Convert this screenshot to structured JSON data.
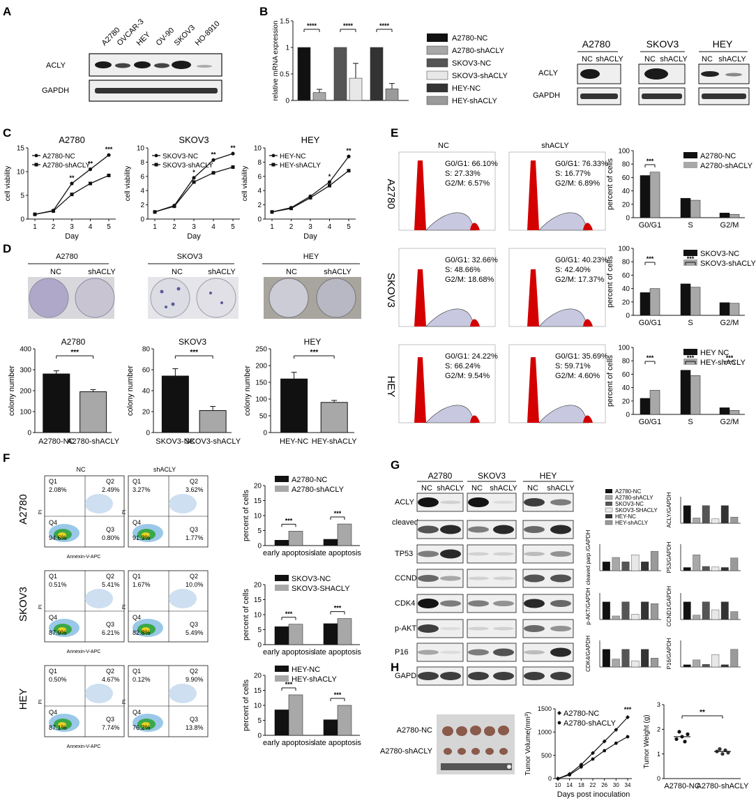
{
  "panels": {
    "A": {
      "letter": "A",
      "cell_lines": [
        "A2780",
        "OVCAR-3",
        "HEY",
        "OV-90",
        "SKOV3",
        "HO-8910"
      ],
      "blots": [
        "ACLY",
        "GAPDH"
      ]
    },
    "B": {
      "letter": "B",
      "chart_ylabel": "relative mRNA expression",
      "legend": [
        "A2780-NC",
        "A2780-shACLY",
        "SKOV3-NC",
        "SKOV3-shACLY",
        "HEY-NC",
        "HEY-shACLY"
      ],
      "colors": [
        "#111111",
        "#a8a8a8",
        "#555555",
        "#e8e8e8",
        "#333333",
        "#9a9a9a"
      ],
      "sig": [
        "****",
        "****",
        "****"
      ],
      "blot_groups": [
        {
          "name": "A2780",
          "lanes": [
            "NC",
            "shACLY"
          ]
        },
        {
          "name": "SKOV3",
          "lanes": [
            "NC",
            "shACLY"
          ]
        },
        {
          "name": "HEY",
          "lanes": [
            "NC",
            "shACLY"
          ]
        }
      ],
      "blots": [
        "ACLY",
        "GAPDH"
      ]
    },
    "C": {
      "letter": "C",
      "ylabel": "cell viability",
      "xlabel": "Day",
      "plots": [
        {
          "title": "A2780",
          "legend": [
            "A2780-NC",
            "A2780-shACLY"
          ],
          "sig": [
            "**",
            "**",
            "***"
          ]
        },
        {
          "title": "SKOV3",
          "legend": [
            "SKOV3-NC",
            "SKOV3-shACLY"
          ],
          "sig": [
            "*",
            "**",
            "**"
          ]
        },
        {
          "title": "HEY",
          "legend": [
            "HEY-NC",
            "HEY-shACLY"
          ],
          "sig": [
            "*",
            "**"
          ]
        }
      ]
    },
    "D": {
      "letter": "D",
      "groups": [
        {
          "title": "A2780",
          "lanes": [
            "NC",
            "shACLY"
          ]
        },
        {
          "title": "SKOV3",
          "lanes": [
            "NC",
            "shACLY"
          ]
        },
        {
          "title": "HEY",
          "lanes": [
            "NC",
            "shACLY"
          ]
        }
      ],
      "ylabel": "colony number",
      "sig": "***",
      "plots": [
        {
          "title": "A2780",
          "categories": [
            "A2780-NC",
            "A2780-shACLY"
          ]
        },
        {
          "title": "SKOV3",
          "categories": [
            "SKOV3-NC",
            "SKOV3-shACLY"
          ]
        },
        {
          "title": "HEY",
          "categories": [
            "HEY-NC",
            "HEY-shACLY"
          ]
        }
      ]
    },
    "E": {
      "letter": "E",
      "col_labels": [
        "NC",
        "shACLY"
      ],
      "rows": [
        {
          "label": "A2780",
          "nc": [
            "G0/G1: 66.10%",
            "S: 27.33%",
            "G2/M: 6.57%"
          ],
          "sh": [
            "G0/G1: 76.33%",
            "S: 16.77%",
            "G2/M: 6.89%"
          ],
          "legend": [
            "A2780-NC",
            "A2780-shACLY"
          ]
        },
        {
          "label": "SKOV3",
          "nc": [
            "G0/G1: 32.66%",
            "S: 48.66%",
            "G2/M: 18.68%"
          ],
          "sh": [
            "G0/G1: 40.23%",
            "S: 42.40%",
            "G2/M: 17.37%"
          ],
          "legend": [
            "SKOV3-NC",
            "SKOV3-shACLY"
          ]
        },
        {
          "label": "HEY",
          "nc": [
            "G0/G1: 24.22%",
            "S: 66.24%",
            "G2/M: 9.54%"
          ],
          "sh": [
            "G0/G1: 35.69%",
            "S: 59.71%",
            "G2/M: 4.60%"
          ],
          "legend": [
            "HEY NC",
            "HEY-shACLY"
          ]
        }
      ],
      "ylabel": "percent of cells",
      "phases": [
        "G0/G1",
        "S",
        "G2/M"
      ],
      "sig": "***"
    },
    "F": {
      "letter": "F",
      "col_labels": [
        "NC",
        "shACLY"
      ],
      "xlabel": "Annexin-V-APC",
      "ylabel_flow": "PI",
      "quadrants": [
        "Q1",
        "Q2",
        "Q3",
        "Q4"
      ],
      "rows": [
        {
          "label": "A2780",
          "nc": [
            "2.08%",
            "2.49%",
            "0.80%",
            "94.6%"
          ],
          "sh": [
            "3.27%",
            "3.62%",
            "1.77%",
            "91.3%"
          ],
          "legend": [
            "A2780-NC",
            "A2780-shACLY"
          ]
        },
        {
          "label": "SKOV3",
          "nc": [
            "0.51%",
            "5.41%",
            "6.21%",
            "87.9%"
          ],
          "sh": [
            "1.67%",
            "10.0%",
            "5.49%",
            "82.8%"
          ],
          "legend": [
            "SKOV3-NC",
            "SKOV3-SHACLY"
          ]
        },
        {
          "label": "HEY",
          "nc": [
            "0.50%",
            "4.67%",
            "7.74%",
            "87.1%"
          ],
          "sh": [
            "0.12%",
            "9.90%",
            "13.8%",
            "76.2%"
          ],
          "legend": [
            "HEY-NC",
            "HEY-shACLY"
          ]
        }
      ],
      "ylabel": "percent of cells",
      "categories": [
        "early apoptosis",
        "late apoptosis"
      ],
      "sig": "***"
    },
    "G": {
      "letter": "G",
      "groups": [
        "A2780",
        "SKOV3",
        "HEY"
      ],
      "lanes": [
        "NC",
        "shACLY"
      ],
      "blots": [
        "ACLY",
        "cleaved parp",
        "TP53",
        "CCND1",
        "CDK4",
        "p-AKT",
        "P16",
        "GAPDH"
      ],
      "legend": [
        "A2780-NC",
        "A2780-shACLY",
        "SKOV3-NC",
        "SKOV3-SHACLY",
        "HEY-NC",
        "HEY-shACLY"
      ],
      "quant_labels": [
        "ACLY/GAPDH",
        "cleaved parp /GAPDH",
        "P53/GAPDH",
        "p-AKT/GAPDH",
        "CCND1/GAPDH",
        "CDK4/GAPDH",
        "P16/GAPDH"
      ]
    },
    "H": {
      "letter": "H",
      "photo_labels": [
        "A2780-NC",
        "A2780-shACLY"
      ],
      "vol_ylabel": "Tumor Volume(mm³)",
      "vol_xlabel": "Days post inoculation",
      "vol_legend": [
        "A2780-NC",
        "A2780-shACLY"
      ],
      "vol_sig": "***",
      "wt_ylabel": "Tumor Weight (g)",
      "wt_categories": [
        "A2780-NC",
        "A2780-shACLY"
      ],
      "wt_sig": "**"
    }
  },
  "chart_data": [
    {
      "id": "B",
      "type": "bar",
      "ylabel": "relative mRNA expression",
      "ylim": [
        0,
        1.5
      ],
      "yticks": [
        0.0,
        0.5,
        1.0,
        1.5
      ],
      "series": [
        {
          "name": "A2780-NC",
          "values": [
            1.0
          ]
        },
        {
          "name": "A2780-shACLY",
          "values": [
            0.15
          ]
        },
        {
          "name": "SKOV3-NC",
          "values": [
            1.0
          ]
        },
        {
          "name": "SKOV3-shACLY",
          "values": [
            0.42
          ]
        },
        {
          "name": "HEY-NC",
          "values": [
            1.0
          ]
        },
        {
          "name": "HEY-shACLY",
          "values": [
            0.22
          ]
        }
      ],
      "errors": [
        0,
        0.06,
        0,
        0.28,
        0,
        0.1
      ]
    },
    {
      "id": "C1",
      "type": "line",
      "title": "A2780",
      "xlabel": "Day",
      "ylabel": "cell viability",
      "x": [
        1,
        2,
        3,
        4,
        5
      ],
      "ylim": [
        0,
        15
      ],
      "yticks": [
        0,
        5,
        10,
        15
      ],
      "series": [
        {
          "name": "A2780-NC",
          "values": [
            1,
            1.8,
            7.5,
            10.5,
            13.5
          ]
        },
        {
          "name": "A2780-shACLY",
          "values": [
            1,
            1.7,
            5.2,
            7.5,
            9.2
          ]
        }
      ]
    },
    {
      "id": "C2",
      "type": "line",
      "title": "SKOV3",
      "xlabel": "Day",
      "ylabel": "cell viability",
      "x": [
        1,
        2,
        3,
        4,
        5
      ],
      "ylim": [
        0,
        10
      ],
      "yticks": [
        0,
        2,
        4,
        6,
        8,
        10
      ],
      "series": [
        {
          "name": "SKOV3-NC",
          "values": [
            1,
            1.9,
            5.8,
            8.3,
            9.2
          ]
        },
        {
          "name": "SKOV3-shACLY",
          "values": [
            1,
            1.8,
            5.2,
            6.5,
            7.3
          ]
        }
      ]
    },
    {
      "id": "C3",
      "type": "line",
      "title": "HEY",
      "xlabel": "Day",
      "ylabel": "cell viability",
      "x": [
        1,
        2,
        3,
        4,
        5
      ],
      "ylim": [
        0,
        10
      ],
      "yticks": [
        0,
        2,
        4,
        6,
        8,
        10
      ],
      "series": [
        {
          "name": "HEY-NC",
          "values": [
            1,
            1.6,
            3.2,
            5.2,
            8.8
          ]
        },
        {
          "name": "HEY-shACLY",
          "values": [
            1,
            1.5,
            3.0,
            4.7,
            6.8
          ]
        }
      ]
    },
    {
      "id": "D1",
      "type": "bar",
      "title": "A2780",
      "ylabel": "colony number",
      "ylim": [
        0,
        400
      ],
      "yticks": [
        0,
        100,
        200,
        300,
        400
      ],
      "categories": [
        "A2780-NC",
        "A2780-shACLY"
      ],
      "values": [
        280,
        195
      ],
      "errors": [
        15,
        10
      ]
    },
    {
      "id": "D2",
      "type": "bar",
      "title": "SKOV3",
      "ylabel": "colony number",
      "ylim": [
        0,
        80
      ],
      "yticks": [
        0,
        20,
        40,
        60,
        80
      ],
      "categories": [
        "SKOV3-NC",
        "SKOV3-shACLY"
      ],
      "values": [
        54,
        21
      ],
      "errors": [
        7,
        4
      ]
    },
    {
      "id": "D3",
      "type": "bar",
      "title": "HEY",
      "ylabel": "colony number",
      "ylim": [
        0,
        250
      ],
      "yticks": [
        0,
        50,
        100,
        150,
        200,
        250
      ],
      "categories": [
        "HEY-NC",
        "HEY-shACLY"
      ],
      "values": [
        160,
        90
      ],
      "errors": [
        20,
        6
      ]
    },
    {
      "id": "E1",
      "type": "bar",
      "ylabel": "percent of cells",
      "ylim": [
        0,
        100
      ],
      "yticks": [
        0,
        20,
        40,
        60,
        80,
        100
      ],
      "categories": [
        "G0/G1",
        "S",
        "G2/M"
      ],
      "series": [
        {
          "name": "A2780-NC",
          "values": [
            63,
            29,
            7
          ]
        },
        {
          "name": "A2780-shACLY",
          "values": [
            68,
            26,
            5
          ]
        }
      ]
    },
    {
      "id": "E2",
      "type": "bar",
      "ylabel": "percent of cells",
      "ylim": [
        0,
        100
      ],
      "yticks": [
        0,
        20,
        40,
        60,
        80,
        100
      ],
      "categories": [
        "G0/G1",
        "S",
        "G2/M"
      ],
      "series": [
        {
          "name": "SKOV3-NC",
          "values": [
            34,
            47,
            19
          ]
        },
        {
          "name": "SKOV3-shACLY",
          "values": [
            40,
            42,
            18
          ]
        }
      ]
    },
    {
      "id": "E3",
      "type": "bar",
      "ylabel": "percent of cells",
      "ylim": [
        0,
        100
      ],
      "yticks": [
        0,
        20,
        40,
        60,
        80,
        100
      ],
      "categories": [
        "G0/G1",
        "S",
        "G2/M"
      ],
      "series": [
        {
          "name": "HEY NC",
          "values": [
            24,
            66,
            10
          ]
        },
        {
          "name": "HEY-shACLY",
          "values": [
            36,
            58,
            6
          ]
        }
      ]
    },
    {
      "id": "F1",
      "type": "bar",
      "ylabel": "percent of cells",
      "ylim": [
        0,
        20
      ],
      "yticks": [
        0,
        5,
        10,
        15,
        20
      ],
      "categories": [
        "early apoptosis",
        "late apoptosis"
      ],
      "series": [
        {
          "name": "A2780-NC",
          "values": [
            1.8,
            2.1
          ]
        },
        {
          "name": "A2780-shACLY",
          "values": [
            4.8,
            7.2
          ]
        }
      ]
    },
    {
      "id": "F2",
      "type": "bar",
      "ylabel": "percent of cells",
      "ylim": [
        0,
        20
      ],
      "yticks": [
        0,
        5,
        10,
        15,
        20
      ],
      "categories": [
        "early apoptosis",
        "late apoptosis"
      ],
      "series": [
        {
          "name": "SKOV3-NC",
          "values": [
            6.0,
            7.0
          ]
        },
        {
          "name": "SKOV3-SHACLY",
          "values": [
            6.8,
            8.7
          ]
        }
      ]
    },
    {
      "id": "F3",
      "type": "bar",
      "ylabel": "percent of cells",
      "ylim": [
        0,
        20
      ],
      "yticks": [
        0,
        5,
        10,
        15,
        20
      ],
      "categories": [
        "early apoptosis",
        "late apoptosis"
      ],
      "series": [
        {
          "name": "HEY-NC",
          "values": [
            8.5,
            5.2
          ]
        },
        {
          "name": "HEY-shACLY",
          "values": [
            13.5,
            10.0
          ]
        }
      ]
    },
    {
      "id": "H1",
      "type": "line",
      "xlabel": "Days post inoculation",
      "ylabel": "Tumor Volume(mm³)",
      "x": [
        10,
        14,
        18,
        22,
        26,
        30,
        34
      ],
      "xticks": [
        10,
        14,
        18,
        22,
        26,
        30,
        34
      ],
      "ylim": [
        0,
        1500
      ],
      "yticks": [
        0,
        500,
        1000,
        1500
      ],
      "series": [
        {
          "name": "A2780-NC",
          "values": [
            0,
            100,
            300,
            550,
            800,
            1050,
            1320
          ]
        },
        {
          "name": "A2780-shACLY",
          "values": [
            0,
            80,
            250,
            420,
            600,
            760,
            900
          ]
        }
      ]
    },
    {
      "id": "H2",
      "type": "scatter",
      "ylabel": "Tumor Weight (g)",
      "ylim": [
        0,
        3
      ],
      "yticks": [
        0,
        1,
        2,
        3
      ],
      "categories": [
        "A2780-NC",
        "A2780-shACLY"
      ],
      "series": [
        {
          "name": "A2780-NC",
          "values": [
            1.6,
            1.9,
            1.7,
            1.5,
            1.8
          ]
        },
        {
          "name": "A2780-shACLY",
          "values": [
            1.1,
            1.2,
            1.0,
            1.15,
            1.05
          ]
        }
      ]
    }
  ]
}
